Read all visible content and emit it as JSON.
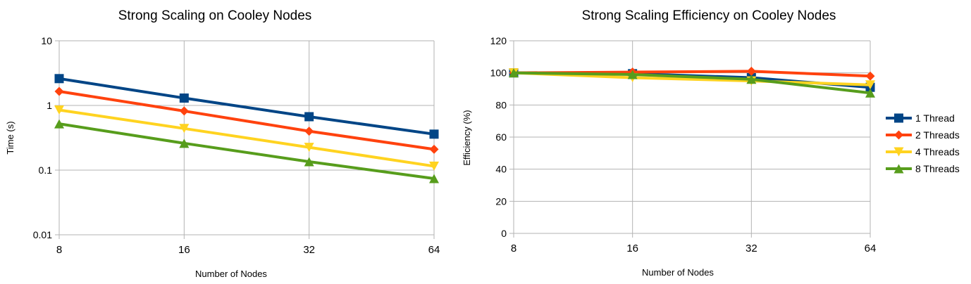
{
  "colors": {
    "1 Thread": "#004586",
    "2 Threads": "#ff420e",
    "4 Threads": "#ffd320",
    "8 Threads": "#579d1c"
  },
  "markers": {
    "1 Thread": "square",
    "2 Threads": "diamond",
    "4 Threads": "triangle-down",
    "8 Threads": "triangle-up"
  },
  "chart_data": [
    {
      "type": "line",
      "title": "Strong Scaling on Cooley Nodes",
      "xlabel": "Number of Nodes",
      "ylabel": "Time (s)",
      "xscale": "log2",
      "yscale": "log10",
      "ylim": [
        0.01,
        10
      ],
      "yticks": [
        "10",
        "1",
        "0.1",
        "0.01"
      ],
      "x": [
        "8",
        "16",
        "32",
        "64"
      ],
      "grid": true,
      "series": [
        {
          "name": "1 Thread",
          "values": [
            2.6,
            1.3,
            0.67,
            0.36
          ]
        },
        {
          "name": "2 Threads",
          "values": [
            1.65,
            0.82,
            0.4,
            0.21
          ]
        },
        {
          "name": "4 Threads",
          "values": [
            0.85,
            0.44,
            0.225,
            0.115
          ]
        },
        {
          "name": "8 Threads",
          "values": [
            0.52,
            0.26,
            0.135,
            0.074
          ]
        }
      ]
    },
    {
      "type": "line",
      "title": "Strong Scaling Efficiency on Cooley Nodes",
      "xlabel": "Number of Nodes",
      "ylabel": "Efficiency (%)",
      "xscale": "log2",
      "ylim": [
        0,
        120
      ],
      "yticks": [
        "120",
        "100",
        "80",
        "60",
        "40",
        "20",
        "0"
      ],
      "x": [
        "8",
        "16",
        "32",
        "64"
      ],
      "grid": true,
      "legend": "right",
      "series": [
        {
          "name": "1 Thread",
          "values": [
            100,
            99.5,
            97,
            91
          ]
        },
        {
          "name": "2 Threads",
          "values": [
            100,
            100.5,
            101,
            98
          ]
        },
        {
          "name": "4 Threads",
          "values": [
            100,
            97,
            95,
            92.5
          ]
        },
        {
          "name": "8 Threads",
          "values": [
            100,
            99,
            96,
            87.5
          ]
        }
      ]
    }
  ]
}
